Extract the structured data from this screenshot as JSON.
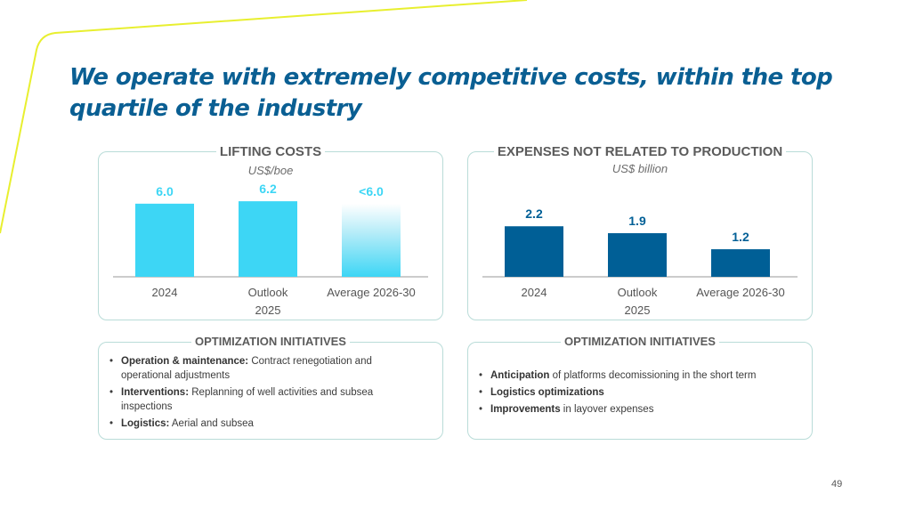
{
  "title": "We operate with extremely competitive costs, within the top quartile of the industry",
  "lifting": {
    "title": "LIFTING COSTS",
    "unit": "US$/boe",
    "chart_data": {
      "type": "bar",
      "title": "LIFTING COSTS",
      "ylabel": "US$/boe",
      "categories": [
        "2024",
        "Outlook 2025",
        "Average 2026-30"
      ],
      "tick_lines": [
        [
          "2024"
        ],
        [
          "Outlook",
          "2025"
        ],
        [
          "Average 2026-30"
        ]
      ],
      "values": [
        6.0,
        6.2,
        6.0
      ],
      "labels": [
        "6.0",
        "6.2",
        "<6.0"
      ],
      "colors": [
        "#3dd6f5",
        "#3dd6f5",
        "gradient"
      ],
      "ylim": [
        0,
        6.5
      ]
    }
  },
  "expenses": {
    "title": "EXPENSES NOT RELATED TO PRODUCTION",
    "unit": "US$ billion",
    "chart_data": {
      "type": "bar",
      "title": "EXPENSES NOT RELATED TO PRODUCTION",
      "ylabel": "US$ billion",
      "categories": [
        "2024",
        "Outlook 2025",
        "Average 2026-30"
      ],
      "tick_lines": [
        [
          "2024"
        ],
        [
          "Outlook",
          "2025"
        ],
        [
          "Average 2026-30"
        ]
      ],
      "values": [
        2.2,
        1.9,
        1.2
      ],
      "labels": [
        "2.2",
        "1.9",
        "1.2"
      ],
      "colors": [
        "#005f96",
        "#005f96",
        "#005f96"
      ],
      "ylim": [
        0,
        3.1
      ]
    }
  },
  "init_left": {
    "title": "OPTIMIZATION INITIATIVES",
    "items": [
      {
        "bold": "Operation & maintenance:",
        "text": " Contract renegotiation and operational adjustments"
      },
      {
        "bold": "Interventions:",
        "text": " Replanning of well activities and subsea inspections"
      },
      {
        "bold": "Logistics:",
        "text": " Aerial and subsea"
      }
    ]
  },
  "init_right": {
    "title": "OPTIMIZATION INITIATIVES",
    "items": [
      {
        "bold": "Anticipation",
        "text": " of platforms decomissioning in the short term"
      },
      {
        "bold": "Logistics optimizations",
        "text": ""
      },
      {
        "bold": "Improvements",
        "text": " in layover expenses"
      }
    ]
  },
  "page_number": "49",
  "colors": {
    "accent_line": "#e8ef2f",
    "title": "#0a5f93",
    "cyan": "#3dd6f5",
    "navy": "#005f96",
    "border": "#b9dcd8"
  }
}
